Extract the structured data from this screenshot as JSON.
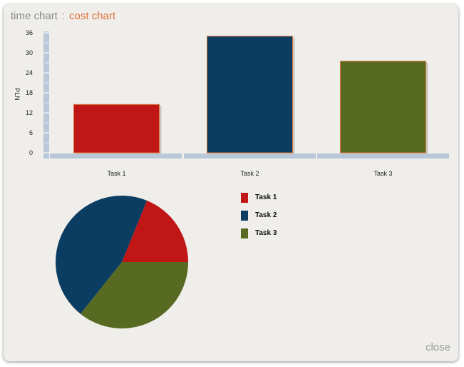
{
  "header": {
    "time_chart_label": "time chart",
    "separator": ":",
    "cost_chart_label": "cost chart"
  },
  "footer": {
    "close_label": "close"
  },
  "colors": {
    "panel_bg": "#efeeea",
    "axis": "#b8c8d8",
    "accent": "#e0703a",
    "task1": "#c01616",
    "task2": "#0b3d62",
    "task3": "#586a22"
  },
  "chart_data": [
    {
      "type": "bar",
      "categories": [
        "Task 1",
        "Task 2",
        "Task 3"
      ],
      "values": [
        14.5,
        35,
        27.5
      ],
      "ylabel": "PLN",
      "ylim": [
        0,
        36
      ],
      "yticks": [
        0,
        6,
        12,
        18,
        24,
        30,
        36
      ],
      "colors": [
        "#c01616",
        "#0b3d62",
        "#586a22"
      ],
      "grid": false
    },
    {
      "type": "pie",
      "categories": [
        "Task 1",
        "Task 2",
        "Task 3"
      ],
      "values": [
        14.5,
        35,
        27.5
      ],
      "colors": [
        "#c01616",
        "#0b3d62",
        "#586a22"
      ],
      "legend": "right"
    }
  ]
}
